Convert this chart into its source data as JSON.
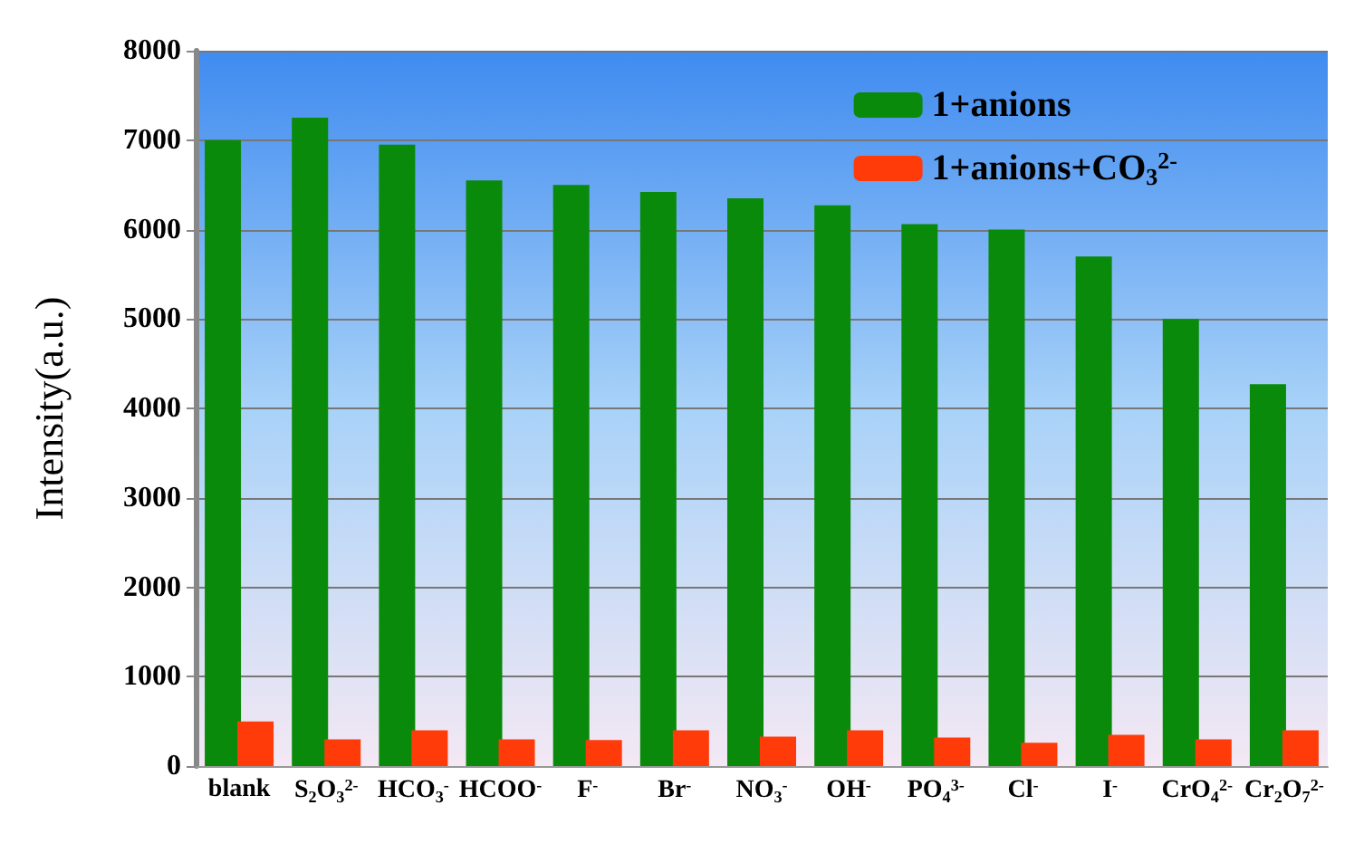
{
  "chart_data": {
    "type": "bar",
    "ylabel": "Intensity(a.u.)",
    "categories": [
      "blank",
      "S$_{2}$O$_{3}$$^{2-}$",
      "HCO$_{3}$$^{-}$",
      "HCOO$^{-}$",
      "F$^{-}$",
      "Br$^{-}$",
      "NO$_{3}$$^{-}$",
      "OH$^{-}$",
      "PO$_{4}$$^{3-}$",
      "Cl$^{-}$",
      "I$^{-}$",
      "CrO$_{4}$$^{2-}$",
      "Cr$_{2}$O$_{7}$$^{2-}$"
    ],
    "series": [
      {
        "name": "1+anions",
        "color": "#0a8a0a",
        "values": [
          7000,
          7250,
          6950,
          6550,
          6500,
          6420,
          6350,
          6270,
          6060,
          6000,
          5700,
          5000,
          4270
        ]
      },
      {
        "name": "1+anions+CO$_{3}$$^{2-}$",
        "color": "#ff3b0a",
        "values": [
          500,
          300,
          400,
          300,
          290,
          400,
          330,
          400,
          320,
          260,
          350,
          300,
          400
        ]
      }
    ],
    "ylim": [
      0,
      8000
    ],
    "yticks": [
      0,
      1000,
      2000,
      3000,
      4000,
      5000,
      6000,
      7000,
      8000
    ],
    "grid": "y",
    "legend": "top right"
  }
}
